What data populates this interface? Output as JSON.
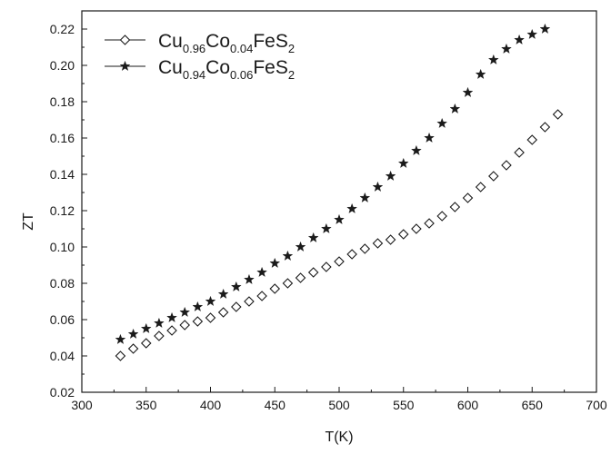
{
  "chart_data": {
    "type": "scatter",
    "xlabel": "T(K)",
    "ylabel": "ZT",
    "xlim": [
      300,
      700
    ],
    "ylim": [
      0.02,
      0.23
    ],
    "x_ticks": [
      "300",
      "350",
      "400",
      "450",
      "500",
      "550",
      "600",
      "650",
      "700"
    ],
    "y_ticks": [
      "0.02",
      "0.04",
      "0.06",
      "0.08",
      "0.10",
      "0.12",
      "0.14",
      "0.16",
      "0.18",
      "0.20",
      "0.22"
    ],
    "grid": false,
    "legend_position": "top-left",
    "series": [
      {
        "marker": "open-diamond",
        "color": "#1a1a1a",
        "legend": {
          "base1": "Cu",
          "sub1": "0.96",
          "base2": "Co",
          "sub2": "0.04",
          "base3": "FeS",
          "sub3": "2"
        },
        "points": [
          [
            330,
            0.04
          ],
          [
            340,
            0.044
          ],
          [
            350,
            0.047
          ],
          [
            360,
            0.051
          ],
          [
            370,
            0.054
          ],
          [
            380,
            0.057
          ],
          [
            390,
            0.059
          ],
          [
            400,
            0.061
          ],
          [
            410,
            0.064
          ],
          [
            420,
            0.067
          ],
          [
            430,
            0.07
          ],
          [
            440,
            0.073
          ],
          [
            450,
            0.077
          ],
          [
            460,
            0.08
          ],
          [
            470,
            0.083
          ],
          [
            480,
            0.086
          ],
          [
            490,
            0.089
          ],
          [
            500,
            0.092
          ],
          [
            510,
            0.096
          ],
          [
            520,
            0.099
          ],
          [
            530,
            0.102
          ],
          [
            540,
            0.104
          ],
          [
            550,
            0.107
          ],
          [
            560,
            0.11
          ],
          [
            570,
            0.113
          ],
          [
            580,
            0.117
          ],
          [
            590,
            0.122
          ],
          [
            600,
            0.127
          ],
          [
            610,
            0.133
          ],
          [
            620,
            0.139
          ],
          [
            630,
            0.145
          ],
          [
            640,
            0.152
          ],
          [
            650,
            0.159
          ],
          [
            660,
            0.166
          ],
          [
            670,
            0.173
          ]
        ]
      },
      {
        "marker": "filled-star",
        "color": "#1a1a1a",
        "legend": {
          "base1": "Cu",
          "sub1": "0.94",
          "base2": "Co",
          "sub2": "0.06",
          "base3": "FeS",
          "sub3": "2"
        },
        "points": [
          [
            330,
            0.049
          ],
          [
            340,
            0.052
          ],
          [
            350,
            0.055
          ],
          [
            360,
            0.058
          ],
          [
            370,
            0.061
          ],
          [
            380,
            0.064
          ],
          [
            390,
            0.067
          ],
          [
            400,
            0.07
          ],
          [
            410,
            0.074
          ],
          [
            420,
            0.078
          ],
          [
            430,
            0.082
          ],
          [
            440,
            0.086
          ],
          [
            450,
            0.091
          ],
          [
            460,
            0.095
          ],
          [
            470,
            0.1
          ],
          [
            480,
            0.105
          ],
          [
            490,
            0.11
          ],
          [
            500,
            0.115
          ],
          [
            510,
            0.121
          ],
          [
            520,
            0.127
          ],
          [
            530,
            0.133
          ],
          [
            540,
            0.139
          ],
          [
            550,
            0.146
          ],
          [
            560,
            0.153
          ],
          [
            570,
            0.16
          ],
          [
            580,
            0.168
          ],
          [
            590,
            0.176
          ],
          [
            600,
            0.185
          ],
          [
            610,
            0.195
          ],
          [
            620,
            0.203
          ],
          [
            630,
            0.209
          ],
          [
            640,
            0.214
          ],
          [
            650,
            0.217
          ],
          [
            660,
            0.22
          ]
        ]
      }
    ]
  }
}
